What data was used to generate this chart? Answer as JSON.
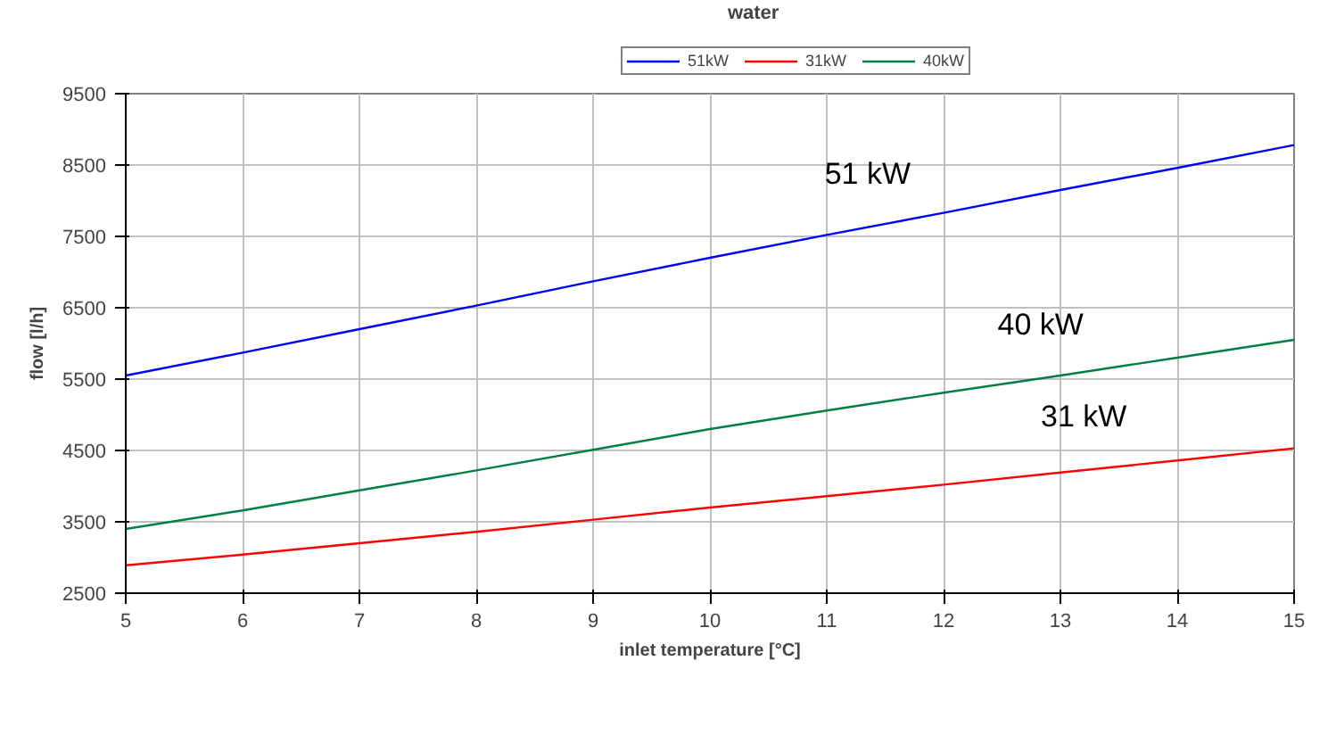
{
  "chart_data": {
    "type": "line",
    "title": "water",
    "xlabel": "inlet temperature [°C]",
    "ylabel": "flow [l/h]",
    "x": [
      5,
      6,
      7,
      8,
      9,
      10,
      11,
      12,
      13,
      14,
      15
    ],
    "series": [
      {
        "name": "51kW",
        "color": "#0000ff",
        "values": [
          5550,
          5870,
          6200,
          6530,
          6870,
          7200,
          7520,
          7830,
          8150,
          8460,
          8780
        ]
      },
      {
        "name": "31kW",
        "color": "#ff0000",
        "values": [
          2890,
          3040,
          3200,
          3360,
          3530,
          3700,
          3860,
          4020,
          4190,
          4360,
          4530
        ]
      },
      {
        "name": "40kW",
        "color": "#008040",
        "values": [
          3400,
          3660,
          3940,
          4220,
          4510,
          4800,
          5060,
          5310,
          5550,
          5800,
          6050
        ]
      }
    ],
    "annotations": [
      {
        "text": "51 kW",
        "x": 11.35,
        "y": 7630
      },
      {
        "text": "40 kW",
        "x": 12.83,
        "y": 5510
      },
      {
        "text": "31 kW",
        "x": 13.2,
        "y": 4224
      }
    ],
    "xlim": [
      5,
      15
    ],
    "xticks": [
      5,
      6,
      7,
      8,
      9,
      10,
      11,
      12,
      13,
      14,
      15
    ],
    "ylim": [
      2500,
      9500
    ],
    "yticks": [
      2500,
      3500,
      4500,
      5500,
      6500,
      7500,
      8500,
      9500
    ],
    "grid": true,
    "legend": "top",
    "marker": "none",
    "line_style": "solid"
  }
}
